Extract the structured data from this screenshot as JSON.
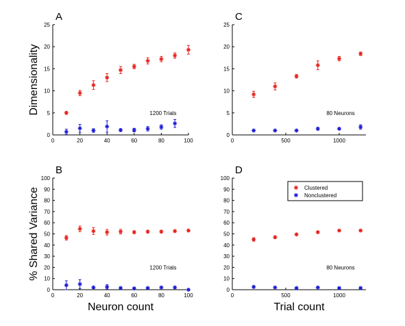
{
  "chart_data": [
    {
      "panel": "A",
      "type": "scatter",
      "ylabel": "Dimensionality",
      "xlim": [
        0,
        100
      ],
      "ylim": [
        0,
        25
      ],
      "xticks": [
        0,
        20,
        40,
        60,
        80,
        100
      ],
      "yticks": [
        0,
        5,
        10,
        15,
        20,
        25
      ],
      "annotation": "1200 Trials",
      "x": [
        10,
        20,
        30,
        40,
        50,
        60,
        70,
        80,
        90,
        100
      ],
      "series": [
        {
          "color": "#e8211c",
          "values": [
            5.0,
            9.5,
            11.3,
            13.0,
            14.7,
            15.5,
            16.8,
            17.2,
            18.0,
            19.3
          ],
          "err": [
            0.3,
            0.6,
            1.0,
            0.9,
            0.8,
            0.5,
            0.7,
            0.6,
            0.6,
            1.0
          ]
        },
        {
          "color": "#1b1bd8",
          "values": [
            0.7,
            1.5,
            1.0,
            1.9,
            1.1,
            1.1,
            1.4,
            1.8,
            2.6,
            null
          ],
          "err": [
            0.6,
            0.9,
            0.4,
            1.3,
            0.3,
            0.4,
            0.5,
            0.5,
            0.9,
            0
          ]
        }
      ]
    },
    {
      "panel": "C",
      "type": "scatter",
      "xlim": [
        0,
        1250
      ],
      "ylim": [
        0,
        25
      ],
      "xticks": [
        0,
        500,
        1000
      ],
      "yticks": [
        0,
        5,
        10,
        15,
        20,
        25
      ],
      "annotation": "80 Neurons",
      "x": [
        200,
        400,
        600,
        800,
        1000,
        1200
      ],
      "series": [
        {
          "color": "#e8211c",
          "values": [
            9.2,
            11.0,
            13.3,
            15.8,
            17.3,
            18.4
          ],
          "err": [
            0.7,
            0.8,
            0.4,
            1.0,
            0.5,
            0.4
          ]
        },
        {
          "color": "#1b1bd8",
          "values": [
            1.0,
            1.0,
            1.0,
            1.4,
            1.4,
            1.8
          ],
          "err": [
            0.2,
            0.2,
            0.2,
            0.3,
            0.2,
            0.5
          ]
        }
      ]
    },
    {
      "panel": "B",
      "type": "scatter",
      "xlabel": "Neuron count",
      "ylabel": "% Shared Variance",
      "xlim": [
        0,
        100
      ],
      "ylim": [
        0,
        100
      ],
      "xticks": [
        0,
        20,
        40,
        60,
        80,
        100
      ],
      "yticks": [
        0,
        10,
        20,
        30,
        40,
        50,
        60,
        70,
        80,
        90,
        100
      ],
      "annotation": "1200 Trials",
      "x": [
        10,
        20,
        30,
        40,
        50,
        60,
        70,
        80,
        90,
        100
      ],
      "series": [
        {
          "color": "#e8211c",
          "values": [
            46.5,
            54.5,
            52.5,
            51.5,
            52.0,
            51.5,
            52.0,
            52.0,
            52.5,
            53.0
          ],
          "err": [
            2.0,
            2.5,
            3.0,
            2.5,
            2.0,
            1.2,
            1.2,
            1.2,
            1.0,
            1.0
          ]
        },
        {
          "color": "#1b1bd8",
          "values": [
            4.0,
            5.0,
            2.0,
            2.5,
            1.5,
            1.2,
            1.5,
            2.0,
            2.0,
            0.0
          ],
          "err": [
            4.0,
            4.0,
            1.0,
            2.0,
            0.8,
            0.6,
            0.6,
            0.8,
            1.0,
            0.2
          ]
        }
      ]
    },
    {
      "panel": "D",
      "type": "scatter",
      "xlabel": "Trial count",
      "xlim": [
        0,
        1250
      ],
      "ylim": [
        0,
        100
      ],
      "xticks": [
        0,
        500,
        1000
      ],
      "yticks": [
        0,
        10,
        20,
        30,
        40,
        50,
        60,
        70,
        80,
        90,
        100
      ],
      "annotation": "80 Neurons",
      "legend": {
        "position": "top-right",
        "entries": [
          {
            "label": "Clustered",
            "color": "#e8211c"
          },
          {
            "label": "Nonclustered",
            "color": "#1b1bd8"
          }
        ]
      },
      "x": [
        200,
        400,
        600,
        800,
        1000,
        1200
      ],
      "series": [
        {
          "color": "#e8211c",
          "values": [
            45.0,
            47.0,
            49.5,
            51.5,
            53.0,
            53.0
          ],
          "err": [
            1.5,
            1.2,
            1.0,
            1.0,
            0.8,
            0.8
          ]
        },
        {
          "color": "#1b1bd8",
          "values": [
            2.5,
            2.0,
            1.5,
            2.0,
            1.5,
            1.5
          ],
          "err": [
            1.0,
            0.6,
            0.5,
            0.5,
            0.4,
            0.4
          ]
        }
      ]
    }
  ]
}
